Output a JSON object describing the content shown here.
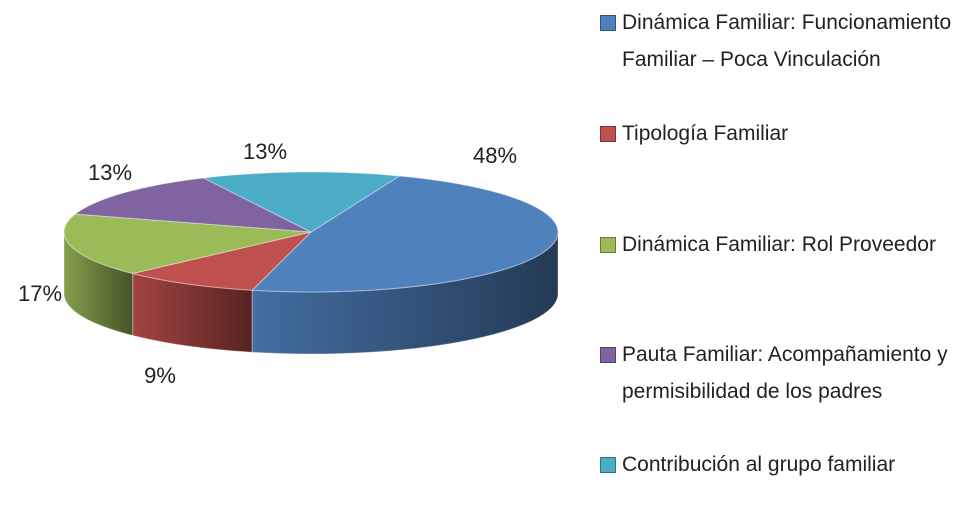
{
  "chart_data": {
    "type": "pie3d",
    "categories": [
      "Dinámica Familiar: Funcionamiento Familiar – Poca Vinculación",
      "Tipología Familiar",
      "Dinámica Familiar: Rol Proveedor",
      "Pauta Familiar: Acompañamiento y permisibilidad de los padres",
      "Contribución al grupo familiar"
    ],
    "values": [
      48,
      9,
      17,
      13,
      13
    ],
    "value_labels": [
      "48%",
      "9%",
      "17%",
      "13%",
      "13%"
    ],
    "colors": [
      "#4f81bd",
      "#c0504d",
      "#9bbb59",
      "#8064a2",
      "#4bacc6"
    ],
    "legend": "right"
  }
}
